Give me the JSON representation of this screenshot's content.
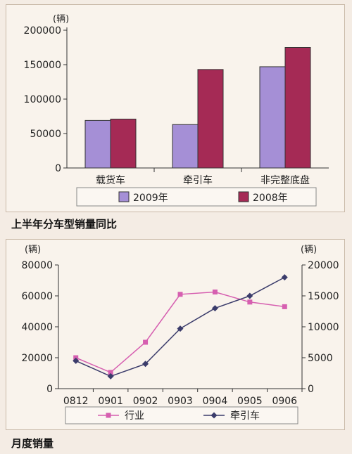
{
  "chart_data": [
    {
      "type": "bar",
      "unit_label": "(辆)",
      "categories": [
        "载货车",
        "牵引车",
        "非完整底盘"
      ],
      "series": [
        {
          "name": "2009年",
          "values": [
            69000,
            63000,
            147000
          ]
        },
        {
          "name": "2008年",
          "values": [
            71000,
            143000,
            175000
          ]
        }
      ],
      "ylim": [
        0,
        200000
      ],
      "yticks": [
        "0",
        "50000",
        "100000",
        "150000",
        "200000"
      ],
      "caption": "上半年分车型销量同比",
      "legend": "bottom",
      "colors": {
        "2009年": "#a58fd6",
        "2008年": "#a52a55"
      }
    },
    {
      "type": "line",
      "left_unit_label": "(辆)",
      "right_unit_label": "(辆)",
      "x": [
        "0812",
        "0901",
        "0902",
        "0903",
        "0904",
        "0905",
        "0906"
      ],
      "series": [
        {
          "name": "行业",
          "axis": "left",
          "values": [
            20000,
            10500,
            30000,
            61000,
            62500,
            56000,
            53000
          ]
        },
        {
          "name": "牵引车",
          "axis": "right",
          "values": [
            4500,
            2000,
            4000,
            9700,
            13000,
            15000,
            18000
          ]
        }
      ],
      "left_ylim": [
        0,
        80000
      ],
      "left_yticks": [
        "0",
        "20000",
        "40000",
        "60000",
        "80000"
      ],
      "right_ylim": [
        0,
        20000
      ],
      "right_yticks": [
        "0",
        "5000",
        "10000",
        "15000",
        "20000"
      ],
      "caption": "月度销量",
      "legend": "bottom",
      "colors": {
        "行业": "#d65fb0",
        "牵引车": "#3b3c6b"
      }
    }
  ]
}
